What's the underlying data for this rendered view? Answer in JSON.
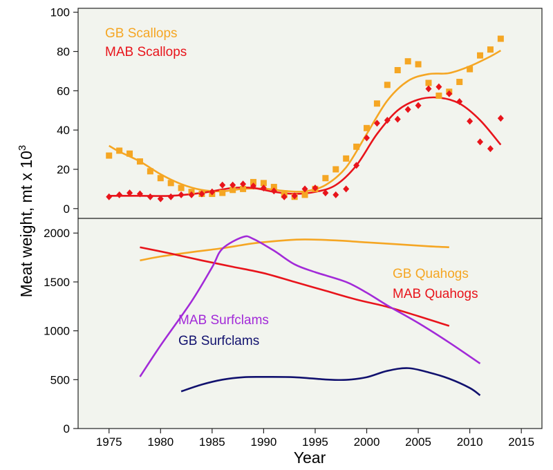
{
  "chart_data": [
    {
      "type": "scatter",
      "panel": "top",
      "xlim": [
        1972,
        2017
      ],
      "ylim": [
        -5,
        102
      ],
      "yticks": [
        0,
        20,
        40,
        60,
        80,
        100
      ],
      "ylabel": "Meat weight, mt x 10",
      "ylabel_superscript": "3",
      "background": "#f2f4ee",
      "series": [
        {
          "name": "GB Scallops",
          "color": "#f5a623",
          "marker": "square",
          "points": [
            [
              1975,
              27
            ],
            [
              1976,
              29.5
            ],
            [
              1977,
              28
            ],
            [
              1978,
              24
            ],
            [
              1979,
              19
            ],
            [
              1980,
              15.5
            ],
            [
              1981,
              13
            ],
            [
              1982,
              10.5
            ],
            [
              1983,
              8.5
            ],
            [
              1984,
              7.5
            ],
            [
              1985,
              7.5
            ],
            [
              1986,
              8
            ],
            [
              1987,
              9.5
            ],
            [
              1988,
              10
            ],
            [
              1989,
              13.5
            ],
            [
              1990,
              13
            ],
            [
              1991,
              11
            ],
            [
              1992,
              7
            ],
            [
              1993,
              6
            ],
            [
              1994,
              7
            ],
            [
              1995,
              10
            ],
            [
              1996,
              15.5
            ],
            [
              1997,
              20
            ],
            [
              1998,
              25.5
            ],
            [
              1999,
              31.5
            ],
            [
              2000,
              41
            ],
            [
              2001,
              53.5
            ],
            [
              2002,
              63
            ],
            [
              2003,
              70.5
            ],
            [
              2004,
              75
            ],
            [
              2005,
              73.5
            ],
            [
              2006,
              64
            ],
            [
              2007,
              57.5
            ],
            [
              2008,
              59.5
            ],
            [
              2009,
              64.5
            ],
            [
              2010,
              71
            ],
            [
              2011,
              78
            ],
            [
              2012,
              81
            ],
            [
              2013,
              86.5
            ]
          ],
          "smooth": [
            [
              1975,
              32
            ],
            [
              1976,
              29
            ],
            [
              1978,
              24
            ],
            [
              1980,
              17.5
            ],
            [
              1982,
              12.5
            ],
            [
              1984,
              9.5
            ],
            [
              1986,
              8.8
            ],
            [
              1988,
              10
            ],
            [
              1990,
              10.2
            ],
            [
              1992,
              9
            ],
            [
              1994,
              8.8
            ],
            [
              1996,
              12
            ],
            [
              1998,
              21
            ],
            [
              2000,
              38
            ],
            [
              2002,
              55
            ],
            [
              2004,
              65
            ],
            [
              2006,
              68.5
            ],
            [
              2008,
              69
            ],
            [
              2010,
              72.5
            ],
            [
              2012,
              77.5
            ],
            [
              2013,
              80.5
            ]
          ]
        },
        {
          "name": "MAB Scallops",
          "color": "#e8141b",
          "marker": "diamond",
          "points": [
            [
              1975,
              6
            ],
            [
              1976,
              7
            ],
            [
              1977,
              8
            ],
            [
              1978,
              7.5
            ],
            [
              1979,
              6
            ],
            [
              1980,
              5
            ],
            [
              1981,
              6
            ],
            [
              1982,
              7
            ],
            [
              1983,
              7
            ],
            [
              1984,
              7.5
            ],
            [
              1985,
              8.5
            ],
            [
              1986,
              12
            ],
            [
              1987,
              12
            ],
            [
              1988,
              12.5
            ],
            [
              1989,
              11.5
            ],
            [
              1990,
              10.5
            ],
            [
              1991,
              9
            ],
            [
              1992,
              6
            ],
            [
              1993,
              6.5
            ],
            [
              1994,
              10
            ],
            [
              1995,
              10.5
            ],
            [
              1996,
              8
            ],
            [
              1997,
              7
            ],
            [
              1998,
              10
            ],
            [
              1999,
              22
            ],
            [
              2000,
              36
            ],
            [
              2001,
              43.5
            ],
            [
              2002,
              45
            ],
            [
              2003,
              45.5
            ],
            [
              2004,
              50.5
            ],
            [
              2005,
              52.5
            ],
            [
              2006,
              61
            ],
            [
              2007,
              62
            ],
            [
              2008,
              58.5
            ],
            [
              2009,
              54.5
            ],
            [
              2010,
              44.5
            ],
            [
              2011,
              34
            ],
            [
              2012,
              30.5
            ],
            [
              2013,
              46
            ]
          ],
          "smooth": [
            [
              1975,
              6.5
            ],
            [
              1978,
              6.5
            ],
            [
              1981,
              6.5
            ],
            [
              1984,
              8
            ],
            [
              1987,
              10.5
            ],
            [
              1989,
              10.5
            ],
            [
              1991,
              8.5
            ],
            [
              1993,
              7.5
            ],
            [
              1995,
              8.5
            ],
            [
              1997,
              12
            ],
            [
              1999,
              22
            ],
            [
              2001,
              38
            ],
            [
              2003,
              50
            ],
            [
              2005,
              55.5
            ],
            [
              2007,
              56.5
            ],
            [
              2009,
              53.5
            ],
            [
              2011,
              45
            ],
            [
              2013,
              32.5
            ]
          ]
        }
      ],
      "legend": [
        {
          "label": "GB Scallops",
          "color": "#f5a623"
        },
        {
          "label": "MAB Scallops",
          "color": "#e8141b"
        }
      ]
    },
    {
      "type": "line",
      "panel": "bottom",
      "xlim": [
        1972,
        2017
      ],
      "ylim": [
        0,
        2150
      ],
      "yticks": [
        0,
        500,
        1000,
        1500,
        2000
      ],
      "xticks": [
        1975,
        1980,
        1985,
        1990,
        1995,
        2000,
        2005,
        2010,
        2015
      ],
      "xlabel": "Year",
      "background": "#f2f4ee",
      "series": [
        {
          "name": "GB Quahogs",
          "color": "#f5a623",
          "points": [
            [
              1978,
              1720
            ],
            [
              1980,
              1760
            ],
            [
              1983,
              1805
            ],
            [
              1986,
              1845
            ],
            [
              1989,
              1895
            ],
            [
              1992,
              1925
            ],
            [
              1994,
              1935
            ],
            [
              1997,
              1925
            ],
            [
              2000,
              1905
            ],
            [
              2003,
              1885
            ],
            [
              2006,
              1865
            ],
            [
              2008,
              1855
            ]
          ]
        },
        {
          "name": "MAB Quahogs",
          "color": "#e8141b",
          "points": [
            [
              1978,
              1855
            ],
            [
              1981,
              1790
            ],
            [
              1984,
              1720
            ],
            [
              1987,
              1655
            ],
            [
              1990,
              1590
            ],
            [
              1993,
              1500
            ],
            [
              1996,
              1410
            ],
            [
              1999,
              1320
            ],
            [
              2002,
              1245
            ],
            [
              2005,
              1150
            ],
            [
              2008,
              1050
            ]
          ]
        },
        {
          "name": "MAB Surfclams",
          "color": "#a22ad8",
          "points": [
            [
              1978,
              530
            ],
            [
              1980,
              850
            ],
            [
              1983,
              1300
            ],
            [
              1985,
              1650
            ],
            [
              1986,
              1840
            ],
            [
              1988,
              1960
            ],
            [
              1989,
              1940
            ],
            [
              1991,
              1820
            ],
            [
              1993,
              1680
            ],
            [
              1995,
              1600
            ],
            [
              1998,
              1500
            ],
            [
              2000,
              1390
            ],
            [
              2002,
              1260
            ],
            [
              2005,
              1080
            ],
            [
              2008,
              880
            ],
            [
              2011,
              665
            ]
          ]
        },
        {
          "name": "GB Surfclams",
          "color": "#11116e",
          "points": [
            [
              1982,
              380
            ],
            [
              1984,
              450
            ],
            [
              1986,
              500
            ],
            [
              1988,
              525
            ],
            [
              1990,
              528
            ],
            [
              1993,
              525
            ],
            [
              1996,
              502
            ],
            [
              1998,
              498
            ],
            [
              2000,
              525
            ],
            [
              2002,
              590
            ],
            [
              2004,
              618
            ],
            [
              2006,
              575
            ],
            [
              2008,
              510
            ],
            [
              2010,
              415
            ],
            [
              2011,
              340
            ]
          ]
        }
      ],
      "legend": [
        {
          "label": "GB Quahogs",
          "color": "#f5a623"
        },
        {
          "label": "MAB Quahogs",
          "color": "#e8141b"
        },
        {
          "label": "MAB Surfclams",
          "color": "#a22ad8"
        },
        {
          "label": "GB Surfclams",
          "color": "#11116e"
        }
      ]
    }
  ]
}
